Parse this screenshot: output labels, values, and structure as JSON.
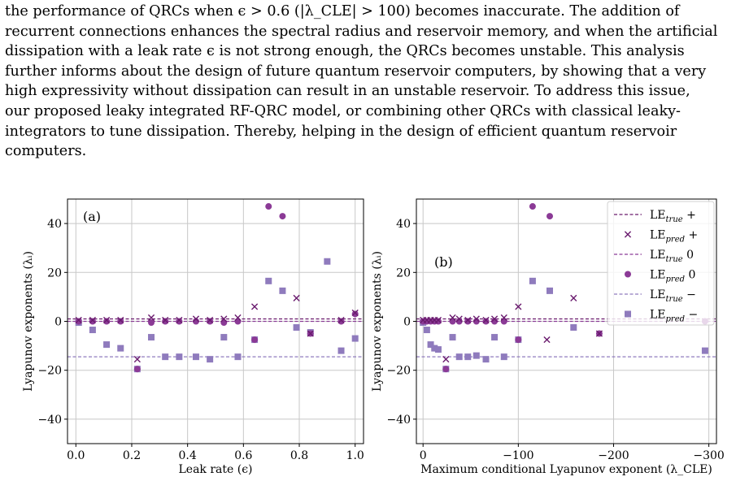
{
  "paragraph": {
    "lines": [
      "the performance of QRCs when ϵ > 0.6 (|λ_CLE| > 100) becomes inaccurate. The addition of",
      "recurrent connections enhances the spectral radius and reservoir memory, and when the artificial",
      "dissipation with a leak rate ϵ is not strong enough, the QRCs becomes unstable. This analysis",
      "further informs about the design of future quantum reservoir computers, by showing that a very",
      "high expressivity without dissipation can result in an unstable reservoir. To address this issue,",
      "our proposed leaky integrated RF-QRC model, or combining other QRCs with classical leaky-",
      "integrators to tune dissipation. Thereby, helping in the design of efficient quantum reservoir",
      "computers."
    ]
  },
  "colors": {
    "plus": "#6a1b6e",
    "zero": "#8b3a96",
    "minus": "#8f7bbd",
    "grid": "#c8c8c8"
  },
  "chart_data": [
    {
      "type": "scatter",
      "panel_label": "(a)",
      "xlabel": "Leak rate (ϵ)",
      "ylabel": "Lyapunov exponents (λᵢ)",
      "xlim": [
        -0.03,
        1.03
      ],
      "ylim": [
        -50,
        50
      ],
      "xticks": [
        0.0,
        0.2,
        0.4,
        0.6,
        0.8,
        1.0
      ],
      "xtick_labels": [
        "0.0",
        "0.2",
        "0.4",
        "0.6",
        "0.8",
        "1.0"
      ],
      "yticks": [
        -40,
        -20,
        0,
        20,
        40
      ],
      "ytick_labels": [
        "−40",
        "−20",
        "0",
        "20",
        "40"
      ],
      "grid": true,
      "true_lines": {
        "plus": 1.0,
        "zero": 0.0,
        "minus": -14.5
      },
      "series": {
        "pred_plus": {
          "x": [
            0.01,
            0.06,
            0.11,
            0.16,
            0.22,
            0.27,
            0.32,
            0.37,
            0.43,
            0.48,
            0.53,
            0.58,
            0.64,
            0.79,
            0.84,
            0.95,
            1.0
          ],
          "y": [
            0.5,
            0.5,
            0.5,
            0.5,
            -15.5,
            1.5,
            0.5,
            0.5,
            1.0,
            0.5,
            1.0,
            1.5,
            6.0,
            9.5,
            -5.0,
            0.5,
            3.5
          ]
        },
        "pred_zero": {
          "x": [
            0.01,
            0.06,
            0.11,
            0.16,
            0.22,
            0.27,
            0.32,
            0.37,
            0.43,
            0.48,
            0.53,
            0.58,
            0.64,
            0.69,
            0.74,
            0.84,
            0.95,
            1.0
          ],
          "y": [
            0.0,
            0.0,
            0.0,
            0.0,
            -19.5,
            -0.5,
            0.0,
            0.0,
            0.0,
            0.0,
            -0.5,
            0.0,
            -7.5,
            47.0,
            43.0,
            -5.0,
            0.0,
            3.0
          ]
        },
        "pred_minus": {
          "x": [
            0.01,
            0.06,
            0.11,
            0.16,
            0.22,
            0.27,
            0.32,
            0.37,
            0.43,
            0.48,
            0.53,
            0.58,
            0.64,
            0.69,
            0.74,
            0.79,
            0.84,
            0.9,
            0.95,
            1.0
          ],
          "y": [
            -0.5,
            -3.5,
            -9.5,
            -11.0,
            -19.5,
            -6.5,
            -14.5,
            -14.5,
            -14.5,
            -15.5,
            -6.5,
            -14.5,
            -7.5,
            16.5,
            12.5,
            -2.5,
            -4.5,
            24.5,
            -12.0,
            -7.0
          ]
        }
      }
    },
    {
      "type": "scatter",
      "panel_label": "(b)",
      "xlabel": "Maximum conditional Lyapunov exponent (λ_CLE)",
      "ylabel": "Lyapunov exponents (λᵢ)",
      "xlim": [
        7,
        -308
      ],
      "ylim": [
        -50,
        50
      ],
      "xticks": [
        0,
        -100,
        -200,
        -300
      ],
      "xtick_labels": [
        "0",
        "−100",
        "−200",
        "−300"
      ],
      "yticks": [
        -40,
        -20,
        0,
        20,
        40
      ],
      "ytick_labels": [
        "−40",
        "−20",
        "0",
        "20",
        "40"
      ],
      "grid": true,
      "true_lines": {
        "plus": 1.0,
        "zero": 0.0,
        "minus": -14.5
      },
      "legend": {
        "placement": "top-right",
        "entries": [
          {
            "key": "true_plus",
            "base": "LE",
            "sub": "true",
            "suffix": "+"
          },
          {
            "key": "pred_plus",
            "base": "LE",
            "sub": "pred",
            "suffix": "+"
          },
          {
            "key": "true_zero",
            "base": "LE",
            "sub": "true",
            "suffix": "0"
          },
          {
            "key": "pred_zero",
            "base": "LE",
            "sub": "pred",
            "suffix": "0"
          },
          {
            "key": "true_minus",
            "base": "LE",
            "sub": "true",
            "suffix": "−"
          },
          {
            "key": "pred_minus",
            "base": "LE",
            "sub": "pred",
            "suffix": "−"
          }
        ]
      },
      "series": {
        "pred_plus": {
          "x": [
            0,
            -4,
            -8,
            -12,
            -16,
            -24,
            -31,
            -38,
            -47,
            -56,
            -66,
            -75,
            -85,
            -100,
            -130,
            -158,
            -185
          ],
          "y": [
            0.5,
            0.5,
            0.5,
            0.5,
            0.5,
            -15.5,
            1.5,
            1.0,
            0.5,
            1.0,
            0.5,
            1.0,
            1.5,
            6.0,
            -7.5,
            9.5,
            -5.0
          ]
        },
        "pred_zero": {
          "x": [
            0,
            -4,
            -8,
            -12,
            -16,
            -24,
            -31,
            -38,
            -47,
            -56,
            -66,
            -75,
            -85,
            -100,
            -115,
            -133,
            -185,
            -296
          ],
          "y": [
            0.0,
            0.0,
            0.0,
            0.0,
            0.0,
            -19.5,
            0.0,
            0.0,
            0.0,
            0.0,
            0.0,
            0.0,
            0.0,
            -7.5,
            47.0,
            43.0,
            -5.0,
            0.0
          ]
        },
        "pred_minus": {
          "x": [
            0,
            -4,
            -8,
            -12,
            -16,
            -24,
            -31,
            -38,
            -47,
            -56,
            -66,
            -75,
            -85,
            -100,
            -115,
            -133,
            -158,
            -296
          ],
          "y": [
            -0.5,
            -3.5,
            -9.5,
            -11.0,
            -11.5,
            -19.5,
            -6.5,
            -14.5,
            -14.5,
            -14.0,
            -15.5,
            -6.5,
            -14.5,
            -7.5,
            16.5,
            12.5,
            -2.5,
            -12.0
          ]
        }
      }
    }
  ]
}
